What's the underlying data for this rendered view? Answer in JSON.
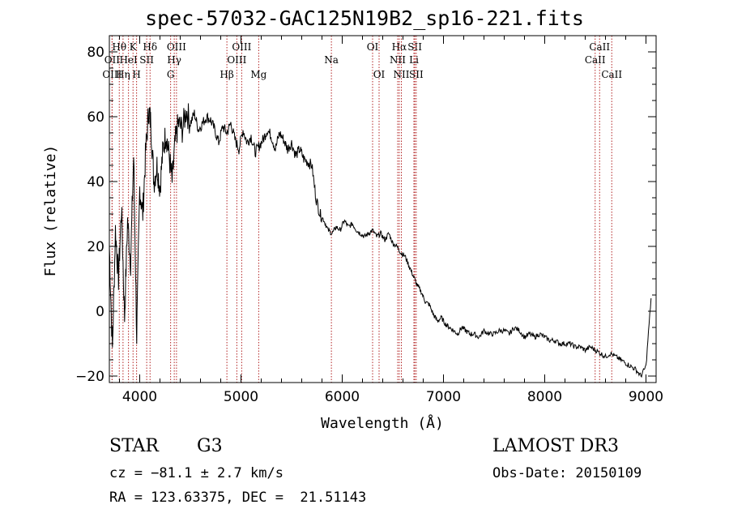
{
  "title": "spec-57032-GAC125N19B2_sp16-221.fits",
  "info": {
    "class": "STAR",
    "subclass": "G3",
    "survey": "LAMOST DR3",
    "cz": "cz = −81.1 ± 2.7 km/s",
    "obs_date": "Obs-Date: 20150109",
    "coords": "RA = 123.63375, DEC =  21.51143"
  },
  "colors": {
    "spectrum": "#000000",
    "lines": "#b22222",
    "axis": "#000000"
  },
  "chart_data": {
    "type": "line",
    "title": "spec-57032-GAC125N19B2_sp16-221.fits",
    "xlabel": "Wavelength (Å)",
    "ylabel": "Flux (relative)",
    "xlim": [
      3700,
      9100
    ],
    "ylim": [
      -22,
      85
    ],
    "xticks": [
      4000,
      5000,
      6000,
      7000,
      8000,
      9000
    ],
    "yticks": [
      -20,
      0,
      20,
      40,
      60,
      80
    ],
    "series": [
      {
        "name": "flux",
        "x": [
          3700,
          3730,
          3760,
          3790,
          3820,
          3850,
          3880,
          3910,
          3940,
          3970,
          4000,
          4030,
          4060,
          4090,
          4110,
          4140,
          4170,
          4200,
          4230,
          4260,
          4290,
          4320,
          4350,
          4380,
          4420,
          4460,
          4500,
          4540,
          4580,
          4620,
          4660,
          4700,
          4740,
          4780,
          4820,
          4860,
          4900,
          4940,
          4980,
          5020,
          5060,
          5100,
          5140,
          5180,
          5220,
          5260,
          5300,
          5340,
          5380,
          5420,
          5460,
          5500,
          5540,
          5580,
          5620,
          5660,
          5700,
          5740,
          5780,
          5820,
          5860,
          5900,
          5940,
          5980,
          6020,
          6060,
          6100,
          6140,
          6180,
          6220,
          6260,
          6300,
          6340,
          6380,
          6420,
          6460,
          6500,
          6540,
          6580,
          6620,
          6660,
          6700,
          6740,
          6780,
          6820,
          6860,
          6900,
          6940,
          6980,
          7020,
          7060,
          7100,
          7140,
          7180,
          7220,
          7260,
          7300,
          7350,
          7400,
          7450,
          7500,
          7550,
          7600,
          7650,
          7700,
          7750,
          7800,
          7850,
          7900,
          7950,
          8000,
          8050,
          8100,
          8150,
          8200,
          8250,
          8300,
          8350,
          8400,
          8450,
          8500,
          8550,
          8600,
          8650,
          8700,
          8750,
          8800,
          8850,
          8900,
          8950,
          9000,
          9050
        ],
        "y": [
          20,
          -12,
          25,
          10,
          32,
          -2,
          28,
          15,
          48,
          -8,
          38,
          30,
          50,
          62,
          58,
          40,
          45,
          38,
          50,
          55,
          48,
          40,
          52,
          58,
          56,
          62,
          58,
          61,
          56,
          58,
          60,
          59,
          56,
          52,
          57,
          55,
          58,
          53,
          50,
          56,
          52,
          54,
          49,
          51,
          53,
          56,
          54,
          50,
          55,
          53,
          50,
          52,
          48,
          50,
          47,
          46,
          45,
          35,
          30,
          28,
          25,
          24,
          26,
          25,
          28,
          26,
          27,
          25,
          24,
          23,
          24,
          25,
          23,
          24,
          22,
          24,
          21,
          20,
          18,
          17,
          14,
          11,
          8,
          6,
          3,
          2,
          -1,
          -3,
          -2,
          -4,
          -5,
          -6,
          -7,
          -5,
          -6,
          -7,
          -7,
          -8,
          -6,
          -7,
          -7,
          -6,
          -6,
          -7,
          -5,
          -6,
          -8,
          -7,
          -8,
          -7,
          -8,
          -9,
          -9,
          -10,
          -10,
          -10,
          -11,
          -11,
          -12,
          -11,
          -12,
          -13,
          -14,
          -13,
          -14,
          -15,
          -16,
          -17,
          -18,
          -20,
          -17,
          4
        ]
      }
    ],
    "lines": [
      {
        "label": "Hθ",
        "wave": 3798,
        "row": 1
      },
      {
        "label": "OII",
        "wave": 3727,
        "row": 2
      },
      {
        "label": "OIII",
        "wave": 3727,
        "row": 3
      },
      {
        "label": "K",
        "wave": 3934,
        "row": 1
      },
      {
        "label": "HeI",
        "wave": 3889,
        "row": 2
      },
      {
        "label": "Hη",
        "wave": 3835,
        "row": 3
      },
      {
        "label": "SII",
        "wave": 4069,
        "row": 2
      },
      {
        "label": "H",
        "wave": 3969,
        "row": 3
      },
      {
        "label": "Hδ",
        "wave": 4102,
        "row": 1
      },
      {
        "label": "OIII",
        "wave": 4363,
        "row": 1
      },
      {
        "label": "Hγ",
        "wave": 4341,
        "row": 2
      },
      {
        "label": "G",
        "wave": 4305,
        "row": 3
      },
      {
        "label": "Hβ",
        "wave": 4861,
        "row": 3
      },
      {
        "label": "OIII",
        "wave": 5007,
        "row": 1
      },
      {
        "label": "OIII",
        "wave": 4959,
        "row": 2
      },
      {
        "label": "Mg",
        "wave": 5175,
        "row": 3
      },
      {
        "label": "Na",
        "wave": 5893,
        "row": 2
      },
      {
        "label": "OI",
        "wave": 6300,
        "row": 1
      },
      {
        "label": "OI",
        "wave": 6364,
        "row": 3
      },
      {
        "label": "Hα",
        "wave": 6563,
        "row": 1
      },
      {
        "label": "NII",
        "wave": 6548,
        "row": 2
      },
      {
        "label": "NII",
        "wave": 6584,
        "row": 3
      },
      {
        "label": "SII",
        "wave": 6717,
        "row": 1
      },
      {
        "label": "Li",
        "wave": 6708,
        "row": 2
      },
      {
        "label": "SII",
        "wave": 6731,
        "row": 3
      },
      {
        "label": "CaII",
        "wave": 8542,
        "row": 1
      },
      {
        "label": "CaII",
        "wave": 8498,
        "row": 2
      },
      {
        "label": "CaII",
        "wave": 8662,
        "row": 3
      }
    ]
  }
}
